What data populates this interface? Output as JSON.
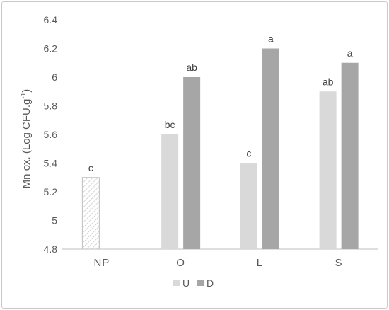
{
  "chart_data": {
    "type": "bar",
    "ylabel": "Mn ox. (Log CFU.g",
    "ylabel_sup": "-1",
    "ylabel_end": ")",
    "ylim": [
      4.8,
      6.4
    ],
    "yticks": [
      "4.8",
      "5",
      "5.2",
      "5.4",
      "5.6",
      "5.8",
      "6",
      "6.2",
      "6.4"
    ],
    "categories": [
      "NP",
      "O",
      "L",
      "S"
    ],
    "series": [
      {
        "name": "U",
        "color": "#d9d9d9",
        "values": [
          5.3,
          5.6,
          5.4,
          5.9
        ],
        "labels": [
          "c",
          "bc",
          "c",
          "ab"
        ],
        "hatched": [
          true,
          false,
          false,
          false
        ]
      },
      {
        "name": "D",
        "color": "#a6a6a6",
        "values": [
          null,
          6.0,
          6.2,
          6.1
        ],
        "labels": [
          "",
          "ab",
          "a",
          "a"
        ]
      }
    ],
    "legend_position": "bottom",
    "grid": false
  }
}
